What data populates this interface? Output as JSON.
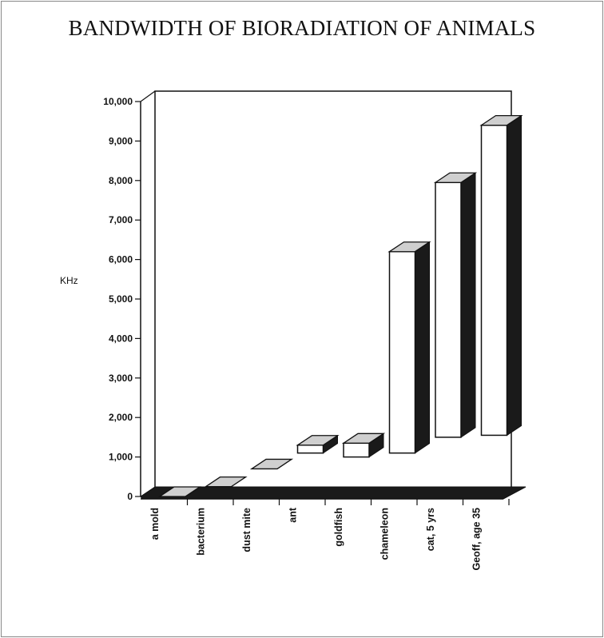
{
  "chart_data": {
    "type": "bar",
    "title": "BANDWIDTH OF BIORADIATION OF ANIMALS",
    "ylabel": "KHz",
    "xlabel": "",
    "categories": [
      "a mold",
      "bacterium",
      "dust mite",
      "ant",
      "goldfish",
      "chameleon",
      "cat, 5 yrs",
      "Geoff, age 35"
    ],
    "ranges": [
      [
        0,
        0
      ],
      [
        250,
        250
      ],
      [
        700,
        700
      ],
      [
        1100,
        1300
      ],
      [
        1000,
        1350
      ],
      [
        1100,
        6200
      ],
      [
        1500,
        7950
      ],
      [
        1550,
        9400
      ]
    ],
    "yticks": [
      "0",
      "1,000",
      "2,000",
      "3,000",
      "4,000",
      "5,000",
      "6,000",
      "7,000",
      "8,000",
      "9,000",
      "10,000"
    ],
    "ylim": [
      0,
      10000
    ],
    "style": "3d floating bars",
    "colors": {
      "bar_face": "#ffffff",
      "bar_top": "#cfcfcf",
      "bar_side": "#1a1a1a",
      "floor": "#1a1a1a"
    }
  }
}
